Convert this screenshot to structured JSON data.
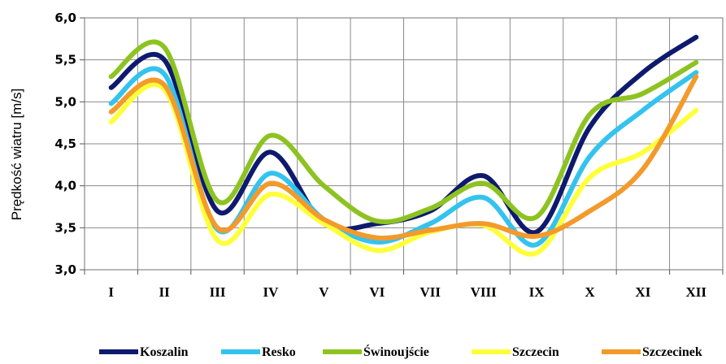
{
  "chart_data": {
    "type": "line",
    "title": "",
    "xlabel": "",
    "ylabel": "Prędkość wiatru [m/s]",
    "ylim": [
      3.0,
      6.0
    ],
    "yticks": [
      "3,0",
      "3,5",
      "4,0",
      "4,5",
      "5,0",
      "5,5",
      "6,0"
    ],
    "categories": [
      "I",
      "II",
      "III",
      "IV",
      "V",
      "VI",
      "VII",
      "VIII",
      "IX",
      "X",
      "XI",
      "XII"
    ],
    "grid": true,
    "legend_position": "bottom",
    "series": [
      {
        "name": "Koszalin",
        "color": "#0d1a6e",
        "values": [
          5.17,
          5.5,
          3.7,
          4.4,
          3.55,
          3.55,
          3.7,
          4.12,
          3.45,
          4.7,
          5.35,
          5.77
        ]
      },
      {
        "name": "Resko",
        "color": "#33c3ee",
        "values": [
          4.98,
          5.33,
          3.48,
          4.15,
          3.6,
          3.33,
          3.55,
          3.86,
          3.3,
          4.35,
          4.9,
          5.35
        ]
      },
      {
        "name": "Świnoujście",
        "color": "#8dc321",
        "values": [
          5.3,
          5.65,
          3.82,
          4.6,
          4.0,
          3.58,
          3.73,
          4.03,
          3.63,
          4.85,
          5.1,
          5.47
        ]
      },
      {
        "name": "Szczecin",
        "color": "#ffff3a",
        "values": [
          4.76,
          5.15,
          3.35,
          3.9,
          3.55,
          3.23,
          3.45,
          3.53,
          3.2,
          4.1,
          4.4,
          4.9
        ]
      },
      {
        "name": "Szczecinek",
        "color": "#f39a2c",
        "values": [
          4.88,
          5.2,
          3.5,
          4.03,
          3.6,
          3.38,
          3.47,
          3.55,
          3.4,
          3.7,
          4.2,
          5.3
        ]
      }
    ]
  }
}
